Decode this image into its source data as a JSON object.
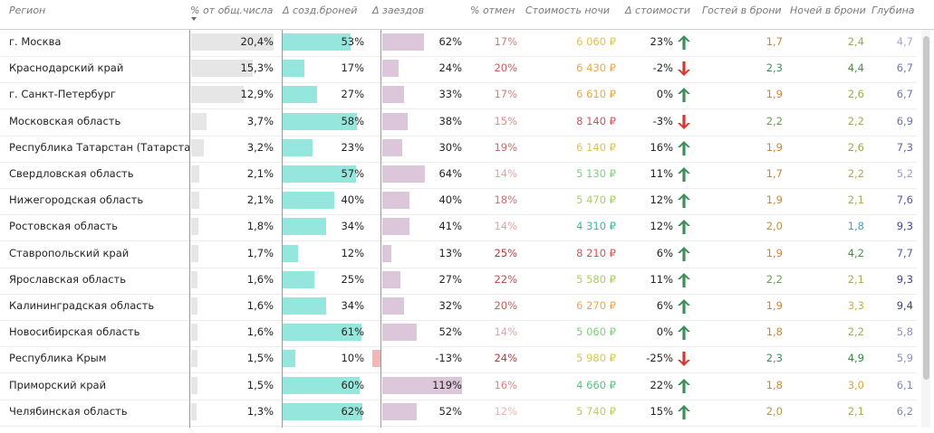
{
  "headers": {
    "region": "Регион",
    "share": "% от общ.числа",
    "booking_delta": "Δ созд.броней",
    "arrival_delta": "Δ заездов",
    "cancel": "% отмен",
    "night_cost": "Стоимость ночи",
    "cost_delta": "Δ стоимости",
    "guests": "Гостей в брони",
    "nights": "Ночей в брони",
    "depth": "Глубина"
  },
  "colors": {
    "up_arrow": "#3f8f5a",
    "down_arrow": "#d23a32",
    "share_bar": "#e6e6e6",
    "booking_bar": "#95e6dc",
    "arrival_bar": "#dcc7da",
    "negative_bar": "#f5b5b5"
  },
  "rows": [
    {
      "region": "г. Москва",
      "share": "20,4%",
      "share_val": 20.4,
      "book": "53%",
      "book_val": 53,
      "arr": "62%",
      "arr_val": 62,
      "cancel": "17%",
      "cancel_color": "#d97b7b",
      "cost": "6 060 ₽",
      "cost_color": "#e2c24a",
      "cdelta": "23%",
      "dir": "up",
      "guests": "1,7",
      "guests_color": "#c7873e",
      "nights": "2,4",
      "nights_color": "#9aab46",
      "depth": "4,7",
      "depth_color": "#a9a9d9"
    },
    {
      "region": "Краснодарский край",
      "share": "15,3%",
      "share_val": 15.3,
      "book": "17%",
      "book_val": 17,
      "arr": "24%",
      "arr_val": 24,
      "cancel": "20%",
      "cancel_color": "#c9595b",
      "cost": "6 430 ₽",
      "cost_color": "#e9a74f",
      "cdelta": "-2%",
      "dir": "down",
      "guests": "2,3",
      "guests_color": "#3f8f5a",
      "nights": "4,4",
      "nights_color": "#4c8f45",
      "depth": "6,7",
      "depth_color": "#7273b8"
    },
    {
      "region": "г. Санкт-Петербург",
      "share": "12,9%",
      "share_val": 12.9,
      "book": "27%",
      "book_val": 27,
      "arr": "33%",
      "arr_val": 33,
      "cancel": "17%",
      "cancel_color": "#d97b7b",
      "cost": "6 610 ₽",
      "cost_color": "#e9a74f",
      "cdelta": "0%",
      "dir": "up",
      "guests": "1,9",
      "guests_color": "#c7873e",
      "nights": "2,6",
      "nights_color": "#9aab46",
      "depth": "6,7",
      "depth_color": "#7273b8"
    },
    {
      "region": "Московская область",
      "share": "3,7%",
      "share_val": 3.7,
      "book": "58%",
      "book_val": 58,
      "arr": "38%",
      "arr_val": 38,
      "cancel": "15%",
      "cancel_color": "#e08c8c",
      "cost": "8 140 ₽",
      "cost_color": "#d9545c",
      "cdelta": "-3%",
      "dir": "down",
      "guests": "2,2",
      "guests_color": "#6a9c51",
      "nights": "2,2",
      "nights_color": "#a6ab4a",
      "depth": "6,9",
      "depth_color": "#6e70b5"
    },
    {
      "region": "Республика Татарстан (Татарстан)",
      "share": "3,2%",
      "share_val": 3.2,
      "book": "23%",
      "book_val": 23,
      "arr": "30%",
      "arr_val": 30,
      "cancel": "19%",
      "cancel_color": "#cc6668",
      "cost": "6 140 ₽",
      "cost_color": "#e2c24a",
      "cdelta": "16%",
      "dir": "up",
      "guests": "1,9",
      "guests_color": "#c7873e",
      "nights": "2,6",
      "nights_color": "#9aab46",
      "depth": "7,3",
      "depth_color": "#6062ae"
    },
    {
      "region": "Свердловская область",
      "share": "2,1%",
      "share_val": 2.1,
      "book": "57%",
      "book_val": 57,
      "arr": "64%",
      "arr_val": 64,
      "cancel": "14%",
      "cancel_color": "#e8a1a1",
      "cost": "5 130 ₽",
      "cost_color": "#7fcf7a",
      "cdelta": "11%",
      "dir": "up",
      "guests": "1,7",
      "guests_color": "#c7873e",
      "nights": "2,2",
      "nights_color": "#a6ab4a",
      "depth": "5,2",
      "depth_color": "#9a9bd2"
    },
    {
      "region": "Нижегородская область",
      "share": "2,1%",
      "share_val": 2.1,
      "book": "40%",
      "book_val": 40,
      "arr": "40%",
      "arr_val": 40,
      "cancel": "18%",
      "cancel_color": "#d07072",
      "cost": "5 470 ₽",
      "cost_color": "#a9cf62",
      "cdelta": "12%",
      "dir": "up",
      "guests": "1,9",
      "guests_color": "#c7873e",
      "nights": "2,1",
      "nights_color": "#a9aa4d",
      "depth": "7,6",
      "depth_color": "#5658a8"
    },
    {
      "region": "Ростовская область",
      "share": "1,8%",
      "share_val": 1.8,
      "book": "34%",
      "book_val": 34,
      "arr": "41%",
      "arr_val": 41,
      "cancel": "14%",
      "cancel_color": "#e8a1a1",
      "cost": "4 310 ₽",
      "cost_color": "#3fb89b",
      "cdelta": "12%",
      "dir": "up",
      "guests": "2,0",
      "guests_color": "#b79540",
      "nights": "1,8",
      "nights_color": "#55a0b8",
      "depth": "9,3",
      "depth_color": "#3e40a0"
    },
    {
      "region": "Ставропольский край",
      "share": "1,7%",
      "share_val": 1.7,
      "book": "12%",
      "book_val": 12,
      "arr": "13%",
      "arr_val": 13,
      "cancel": "25%",
      "cancel_color": "#b83a3c",
      "cost": "8 210 ₽",
      "cost_color": "#d9545c",
      "cdelta": "6%",
      "dir": "up",
      "guests": "1,9",
      "guests_color": "#c7873e",
      "nights": "4,2",
      "nights_color": "#4c8f45",
      "depth": "7,7",
      "depth_color": "#5658a8"
    },
    {
      "region": "Ярославская область",
      "share": "1,6%",
      "share_val": 1.6,
      "book": "25%",
      "book_val": 25,
      "arr": "27%",
      "arr_val": 27,
      "cancel": "22%",
      "cancel_color": "#c04a4c",
      "cost": "5 580 ₽",
      "cost_color": "#a9cf62",
      "cdelta": "11%",
      "dir": "up",
      "guests": "2,2",
      "guests_color": "#6a9c51",
      "nights": "2,1",
      "nights_color": "#a9aa4d",
      "depth": "9,3",
      "depth_color": "#3e40a0"
    },
    {
      "region": "Калининградская область",
      "share": "1,6%",
      "share_val": 1.6,
      "book": "34%",
      "book_val": 34,
      "arr": "32%",
      "arr_val": 32,
      "cancel": "20%",
      "cancel_color": "#c9595b",
      "cost": "6 270 ₽",
      "cost_color": "#e9a74f",
      "cdelta": "6%",
      "dir": "up",
      "guests": "1,9",
      "guests_color": "#c7873e",
      "nights": "3,3",
      "nights_color": "#c9b13a",
      "depth": "9,4",
      "depth_color": "#3a3c9e"
    },
    {
      "region": "Новосибирская область",
      "share": "1,6%",
      "share_val": 1.6,
      "book": "61%",
      "book_val": 61,
      "arr": "52%",
      "arr_val": 52,
      "cancel": "14%",
      "cancel_color": "#e8a1a1",
      "cost": "5 060 ₽",
      "cost_color": "#7fcf7a",
      "cdelta": "0%",
      "dir": "up",
      "guests": "1,8",
      "guests_color": "#c7873e",
      "nights": "2,2",
      "nights_color": "#a6ab4a",
      "depth": "5,8",
      "depth_color": "#8d8ecb"
    },
    {
      "region": "Республика Крым",
      "share": "1,5%",
      "share_val": 1.5,
      "book": "10%",
      "book_val": 10,
      "arr": "-13%",
      "arr_val": -13,
      "cancel": "24%",
      "cancel_color": "#b83a3c",
      "cost": "5 980 ₽",
      "cost_color": "#d5c94a",
      "cdelta": "-25%",
      "dir": "down",
      "guests": "2,3",
      "guests_color": "#3f8f5a",
      "nights": "4,9",
      "nights_color": "#2f8a3e",
      "depth": "5,9",
      "depth_color": "#8d8ecb"
    },
    {
      "region": "Приморский край",
      "share": "1,5%",
      "share_val": 1.5,
      "book": "60%",
      "book_val": 60,
      "arr": "119%",
      "arr_val": 119,
      "cancel": "16%",
      "cancel_color": "#dc8486",
      "cost": "4 660 ₽",
      "cost_color": "#58c281",
      "cdelta": "22%",
      "dir": "up",
      "guests": "1,8",
      "guests_color": "#c7873e",
      "nights": "3,0",
      "nights_color": "#d2a93c",
      "depth": "6,1",
      "depth_color": "#8384c4"
    },
    {
      "region": "Челябинская область",
      "share": "1,3%",
      "share_val": 1.3,
      "book": "62%",
      "book_val": 62,
      "arr": "52%",
      "arr_val": 52,
      "cancel": "12%",
      "cancel_color": "#eeb2b2",
      "cost": "5 740 ₽",
      "cost_color": "#b7cf5c",
      "cdelta": "15%",
      "dir": "up",
      "guests": "2,0",
      "guests_color": "#b79540",
      "nights": "2,1",
      "nights_color": "#a9aa4d",
      "depth": "6,2",
      "depth_color": "#8384c4"
    }
  ]
}
